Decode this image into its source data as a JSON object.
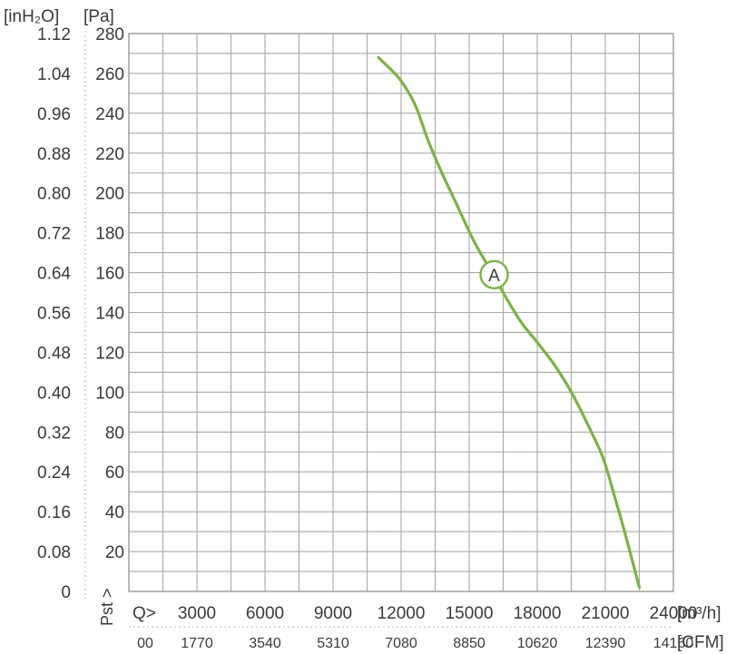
{
  "chart_data": {
    "type": "line",
    "xlabel_primary": "Q>",
    "xunit_primary": "[m³/h]",
    "xunit_secondary": "[CFM]",
    "ylabel": "Pst >",
    "yunit_primary": "[Pa]",
    "yunit_secondary": "[inH₂O]",
    "xlim": [
      0,
      24000
    ],
    "ylim": [
      0,
      280
    ],
    "x_ticks_primary": [
      "3000",
      "6000",
      "9000",
      "12000",
      "15000",
      "18000",
      "21000",
      "24000"
    ],
    "x_ticks_primary_values": [
      3000,
      6000,
      9000,
      12000,
      15000,
      18000,
      21000,
      24000
    ],
    "x_ticks_secondary": [
      "00",
      "1770",
      "3540",
      "5310",
      "7080",
      "8850",
      "10620",
      "12390",
      "14160"
    ],
    "x_ticks_secondary_values": [
      0,
      3000,
      6000,
      9000,
      12000,
      15000,
      18000,
      21000,
      24000
    ],
    "y_ticks_pa": [
      "280",
      "260",
      "240",
      "220",
      "200",
      "180",
      "160",
      "140",
      "120",
      "100",
      "80",
      "60",
      "40",
      "20"
    ],
    "y_ticks_pa_values": [
      280,
      260,
      240,
      220,
      200,
      180,
      160,
      140,
      120,
      100,
      80,
      60,
      40,
      20
    ],
    "y_ticks_inh2o": [
      "1.12",
      "1.04",
      "0.96",
      "0.88",
      "0.80",
      "0.72",
      "0.64",
      "0.56",
      "0.48",
      "0.40",
      "0.32",
      "0.24",
      "0.16",
      "0.08",
      "0"
    ],
    "y_ticks_inh2o_values": [
      280,
      260,
      240,
      220,
      200,
      180,
      160,
      140,
      120,
      100,
      80,
      60,
      40,
      20,
      0
    ],
    "grid": true,
    "series": [
      {
        "name": "A",
        "color": "#7cb342",
        "x": [
          11000,
          11800,
          12300,
          12700,
          13200,
          13800,
          14500,
          15200,
          15900,
          16600,
          17300,
          18000,
          18800,
          19600,
          20300,
          20900,
          21400,
          21800,
          22200,
          22500
        ],
        "y": [
          268,
          259,
          251,
          242,
          226,
          210,
          193,
          176,
          162,
          148,
          135,
          125,
          113,
          98,
          82,
          67,
          48,
          32,
          15,
          2
        ]
      }
    ],
    "curve_marker": {
      "label": "A",
      "x": 16100,
      "y": 159
    }
  }
}
